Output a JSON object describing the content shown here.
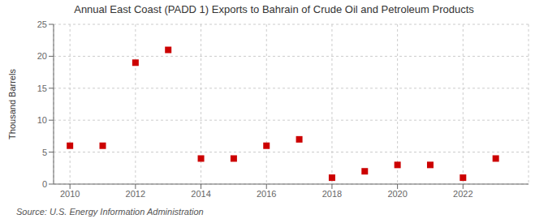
{
  "chart_data": {
    "type": "scatter",
    "title": "Annual East Coast (PADD 1) Exports to Bahrain of Crude Oil and Petroleum Products",
    "y_label": "Thousand Barrels",
    "annotations": [
      "Source: U.S. Energy Information Administration"
    ],
    "x": [
      2010,
      2011,
      2012,
      2013,
      2014,
      2015,
      2016,
      2017,
      2018,
      2019,
      2020,
      2021,
      2022,
      2023
    ],
    "values": [
      6,
      6,
      19,
      21,
      4,
      4,
      6,
      7,
      1,
      2,
      3,
      3,
      1,
      4
    ],
    "color": "#cc0000",
    "marker": "square",
    "xlim": [
      2009.5,
      2024.0
    ],
    "ylim": [
      0,
      25
    ],
    "xticks": [
      2010,
      2012,
      2014,
      2016,
      2018,
      2020,
      2022
    ],
    "yticks": [
      0,
      5,
      10,
      15,
      20,
      25
    ],
    "grid": true
  }
}
